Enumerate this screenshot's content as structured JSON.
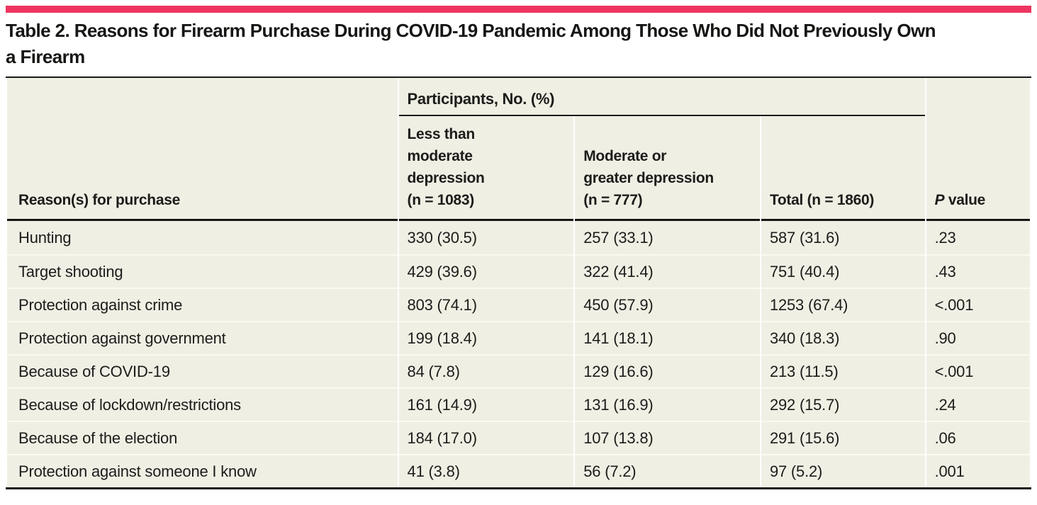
{
  "accent_color": "#ee3560",
  "title": "Table 2. Reasons for Firearm Purchase During COVID-19 Pandemic Among Those Who Did Not Previously Own\na Firearm",
  "table": {
    "group_header": "Participants, No. (%)",
    "columns": {
      "reason": "Reason(s) for purchase",
      "less_than_moderate": "Less than\nmoderate\ndepression\n(n = 1083)",
      "moderate_or_greater": "Moderate or\ngreater depression\n(n = 777)",
      "total": "Total (n = 1860)",
      "p_italic": "P",
      "p_rest": "value"
    },
    "rows": [
      {
        "reason": "Hunting",
        "ltm": "330 (30.5)",
        "mgd": "257 (33.1)",
        "total": "587 (31.6)",
        "p": ".23"
      },
      {
        "reason": "Target shooting",
        "ltm": "429 (39.6)",
        "mgd": "322 (41.4)",
        "total": "751 (40.4)",
        "p": ".43"
      },
      {
        "reason": "Protection against crime",
        "ltm": "803 (74.1)",
        "mgd": "450 (57.9)",
        "total": "1253 (67.4)",
        "p": "<.001"
      },
      {
        "reason": "Protection against government",
        "ltm": "199 (18.4)",
        "mgd": "141 (18.1)",
        "total": "340 (18.3)",
        "p": ".90"
      },
      {
        "reason": "Because of COVID-19",
        "ltm": "84 (7.8)",
        "mgd": "129 (16.6)",
        "total": "213 (11.5)",
        "p": "<.001"
      },
      {
        "reason": "Because of lockdown/restrictions",
        "ltm": "161 (14.9)",
        "mgd": "131 (16.9)",
        "total": "292 (15.7)",
        "p": ".24"
      },
      {
        "reason": "Because of the election",
        "ltm": "184 (17.0)",
        "mgd": "107 (13.8)",
        "total": "291 (15.6)",
        "p": ".06"
      },
      {
        "reason": "Protection against someone I know",
        "ltm": "41 (3.8)",
        "mgd": "56 (7.2)",
        "total": "97 (5.2)",
        "p": ".001"
      }
    ]
  }
}
